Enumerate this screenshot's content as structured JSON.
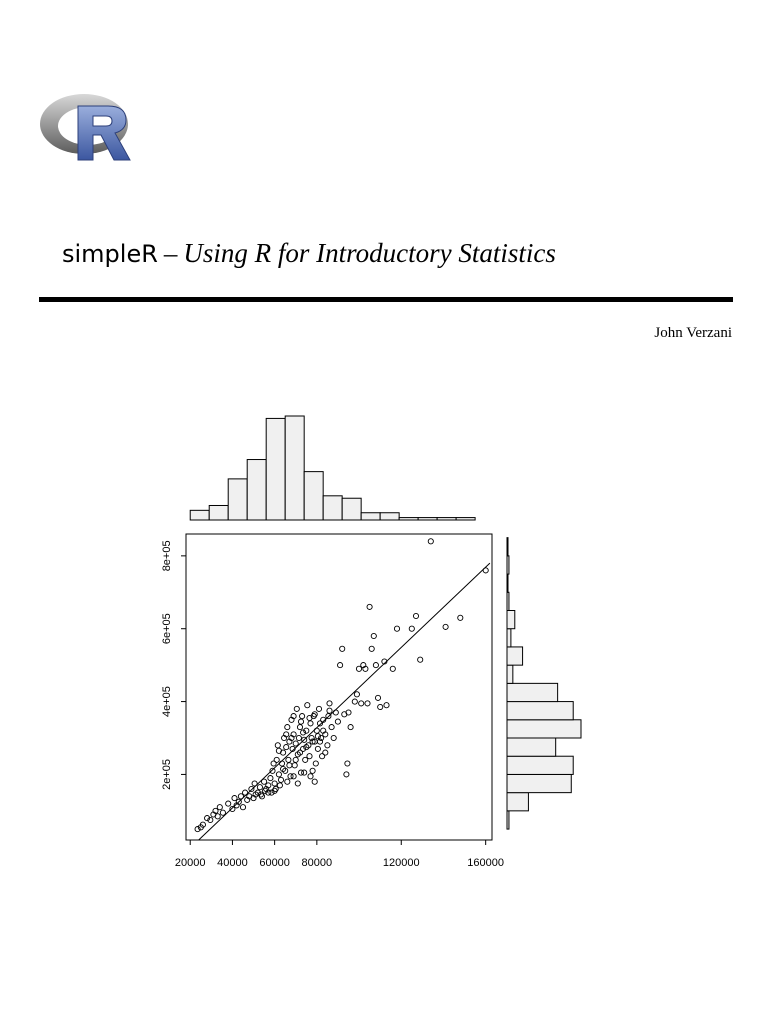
{
  "header": {
    "brand": "simpleR",
    "dash": "–",
    "subtitle": "Using R for Introductory Statistics",
    "author": "John Verzani"
  },
  "logo": {
    "icon": "r-logo-icon",
    "letter": "R",
    "ring_color": "#8a8a8a",
    "letter_color": "#5a6fae"
  },
  "chart_data": {
    "type": "scatter",
    "title": "",
    "xlabel": "",
    "ylabel": "",
    "xlim": [
      18000,
      163000
    ],
    "ylim": [
      20000,
      860000
    ],
    "x_ticks": [
      20000,
      40000,
      60000,
      80000,
      120000,
      160000
    ],
    "x_tick_labels": [
      "20000",
      "40000",
      "60000",
      "80000",
      "120000",
      "160000"
    ],
    "y_ticks": [
      200000,
      400000,
      600000,
      800000
    ],
    "y_tick_labels": [
      "2e+05",
      "4e+05",
      "6e+05",
      "8e+05"
    ],
    "regression_line": {
      "x": [
        24000,
        162000
      ],
      "y": [
        20000,
        780000
      ]
    },
    "marginal_histograms": {
      "x": {
        "breaks": [
          20000,
          29000,
          38000,
          47000,
          56000,
          65000,
          74000,
          83000,
          92000,
          101000,
          110000,
          119000,
          128000,
          137000,
          146000,
          155000
        ],
        "counts": [
          4,
          6,
          17,
          25,
          42,
          43,
          20,
          10,
          9,
          3,
          3,
          1,
          1,
          1,
          1
        ]
      },
      "y": {
        "breaks": [
          50000,
          100000,
          150000,
          200000,
          250000,
          300000,
          350000,
          400000,
          450000,
          500000,
          550000,
          600000,
          650000,
          700000,
          750000,
          800000,
          850000
        ],
        "counts": [
          1,
          11,
          33,
          34,
          25,
          38,
          34,
          26,
          3,
          8,
          2,
          4,
          1,
          0,
          1,
          0
        ]
      }
    },
    "points": [
      [
        23500,
        50000
      ],
      [
        25000,
        55000
      ],
      [
        26000,
        62000
      ],
      [
        28000,
        80000
      ],
      [
        29500,
        75000
      ],
      [
        31000,
        90000
      ],
      [
        32000,
        100000
      ],
      [
        33000,
        85000
      ],
      [
        34000,
        110000
      ],
      [
        35500,
        95000
      ],
      [
        38000,
        120000
      ],
      [
        40000,
        105000
      ],
      [
        41000,
        135000
      ],
      [
        42000,
        115000
      ],
      [
        43000,
        125000
      ],
      [
        44000,
        140000
      ],
      [
        45000,
        110000
      ],
      [
        46000,
        150000
      ],
      [
        47000,
        130000
      ],
      [
        48000,
        140000
      ],
      [
        49000,
        160000
      ],
      [
        50000,
        135000
      ],
      [
        50500,
        175000
      ],
      [
        51000,
        145000
      ],
      [
        52000,
        150000
      ],
      [
        53000,
        165000
      ],
      [
        54000,
        140000
      ],
      [
        55000,
        180000
      ],
      [
        55500,
        155000
      ],
      [
        56000,
        160000
      ],
      [
        57000,
        170000
      ],
      [
        58000,
        190000
      ],
      [
        58500,
        150000
      ],
      [
        59000,
        210000
      ],
      [
        60000,
        175000
      ],
      [
        60500,
        160000
      ],
      [
        61000,
        240000
      ],
      [
        61500,
        280000
      ],
      [
        62000,
        200000
      ],
      [
        63000,
        185000
      ],
      [
        63500,
        230000
      ],
      [
        64000,
        260000
      ],
      [
        64500,
        300000
      ],
      [
        65000,
        210000
      ],
      [
        65500,
        275000
      ],
      [
        66000,
        330000
      ],
      [
        66500,
        240000
      ],
      [
        67000,
        290000
      ],
      [
        67500,
        195000
      ],
      [
        68000,
        350000
      ],
      [
        68500,
        270000
      ],
      [
        69000,
        310000
      ],
      [
        69500,
        225000
      ],
      [
        70000,
        285000
      ],
      [
        70500,
        380000
      ],
      [
        71000,
        255000
      ],
      [
        71500,
        300000
      ],
      [
        72000,
        330000
      ],
      [
        72500,
        205000
      ],
      [
        73000,
        360000
      ],
      [
        73500,
        270000
      ],
      [
        74000,
        295000
      ],
      [
        74500,
        240000
      ],
      [
        75000,
        320000
      ],
      [
        75500,
        390000
      ],
      [
        76000,
        280000
      ],
      [
        76500,
        250000
      ],
      [
        77000,
        340000
      ],
      [
        77500,
        300000
      ],
      [
        78000,
        210000
      ],
      [
        78500,
        360000
      ],
      [
        79000,
        290000
      ],
      [
        79500,
        230000
      ],
      [
        80000,
        320000
      ],
      [
        80500,
        270000
      ],
      [
        81000,
        380000
      ],
      [
        81500,
        340000
      ],
      [
        82000,
        300000
      ],
      [
        82500,
        250000
      ],
      [
        83000,
        350000
      ],
      [
        84000,
        310000
      ],
      [
        85000,
        280000
      ],
      [
        85500,
        360000
      ],
      [
        86000,
        395000
      ],
      [
        87000,
        330000
      ],
      [
        88000,
        300000
      ],
      [
        89000,
        370000
      ],
      [
        90000,
        345000
      ],
      [
        91000,
        500000
      ],
      [
        92000,
        545000
      ],
      [
        93000,
        365000
      ],
      [
        94000,
        200000
      ],
      [
        94500,
        230000
      ],
      [
        95000,
        370000
      ],
      [
        96000,
        330000
      ],
      [
        98000,
        400000
      ],
      [
        99000,
        420000
      ],
      [
        100000,
        490000
      ],
      [
        101000,
        395000
      ],
      [
        102000,
        500000
      ],
      [
        103000,
        490000
      ],
      [
        104000,
        395000
      ],
      [
        105000,
        660000
      ],
      [
        106000,
        545000
      ],
      [
        107000,
        580000
      ],
      [
        108000,
        500000
      ],
      [
        109000,
        410000
      ],
      [
        110000,
        385000
      ],
      [
        112000,
        510000
      ],
      [
        113000,
        390000
      ],
      [
        116000,
        490000
      ],
      [
        118000,
        600000
      ],
      [
        125000,
        600000
      ],
      [
        127000,
        635000
      ],
      [
        129000,
        515000
      ],
      [
        134000,
        840000
      ],
      [
        141000,
        605000
      ],
      [
        148000,
        630000
      ],
      [
        160000,
        760000
      ],
      [
        60000,
        155000
      ],
      [
        62500,
        170000
      ],
      [
        66000,
        180000
      ],
      [
        69000,
        195000
      ],
      [
        71000,
        175000
      ],
      [
        74000,
        205000
      ],
      [
        77000,
        195000
      ],
      [
        79000,
        180000
      ],
      [
        57000,
        150000
      ],
      [
        53500,
        145000
      ],
      [
        64000,
        215000
      ],
      [
        67000,
        225000
      ],
      [
        70000,
        240000
      ],
      [
        72000,
        260000
      ],
      [
        75000,
        275000
      ],
      [
        78000,
        290000
      ],
      [
        80500,
        305000
      ],
      [
        83000,
        320000
      ],
      [
        65500,
        310000
      ],
      [
        68000,
        300000
      ],
      [
        72500,
        345000
      ],
      [
        76500,
        355000
      ],
      [
        79000,
        365000
      ],
      [
        81500,
        290000
      ],
      [
        84000,
        260000
      ],
      [
        86000,
        375000
      ],
      [
        69000,
        360000
      ],
      [
        73500,
        315000
      ],
      [
        62000,
        265000
      ],
      [
        59500,
        230000
      ]
    ]
  }
}
